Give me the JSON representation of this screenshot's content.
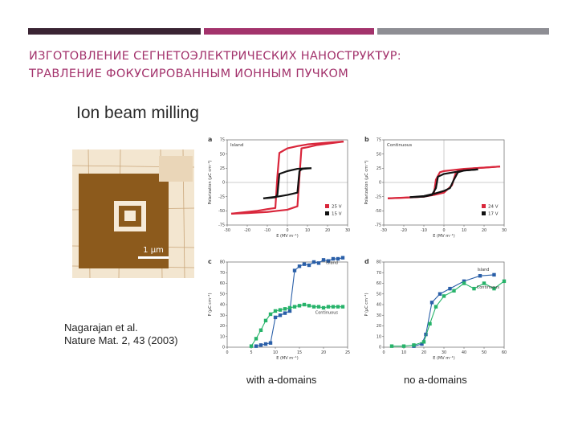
{
  "slide": {
    "title_line1": "ИЗГОТОВЛЕНИЕ СЕГНЕТОЭЛЕКТРИЧЕСКИХ НАНОСТРУКТУР:",
    "title_line2": "ТРАВЛЕНИЕ ФОКУСИРОВАННЫМ ИОННЫМ ПУЧКОМ",
    "figure_title": "Ion beam milling",
    "scale_bar_label": "1 μm",
    "reference_line1": "Nagarajan et al.",
    "reference_line2": "Nature Mat. 2, 43 (2003)",
    "caption_left": "with a-domains",
    "caption_right": "no a-domains",
    "colors": {
      "accent": "#a3336c",
      "dark_bar": "#3a2433",
      "grey_bar": "#8e8e94",
      "red": "#d9263b",
      "black": "#111111",
      "blue": "#2a5fa8",
      "green": "#27b36a",
      "afm_brown": "#8c5a1c"
    }
  },
  "chart_data": [
    {
      "panel": "a",
      "type": "line",
      "annotation": "Island",
      "xlabel": "E (MV m⁻¹)",
      "ylabel": "Polarization (μC cm⁻²)",
      "xlim": [
        -30,
        30
      ],
      "ylim": [
        -75,
        75
      ],
      "xticks": [
        -30,
        -20,
        -10,
        0,
        10,
        20,
        30
      ],
      "yticks": [
        -75,
        -50,
        -25,
        0,
        25,
        50,
        75
      ],
      "series": [
        {
          "name": "25 V",
          "color": "red",
          "upper": {
            "x": [
              -28,
              -15,
              -10,
              -6,
              -5,
              -4,
              0,
              5,
              10,
              20,
              28
            ],
            "y": [
              -55,
              -50,
              -47,
              -45,
              10,
              52,
              60,
              64,
              67,
              70,
              72
            ]
          },
          "lower": {
            "x": [
              28,
              15,
              10,
              7,
              6,
              5,
              0,
              -5,
              -10,
              -20,
              -28
            ],
            "y": [
              72,
              66,
              62,
              60,
              10,
              -42,
              -48,
              -50,
              -52,
              -54,
              -55
            ]
          }
        },
        {
          "name": "15 V",
          "color": "black",
          "upper": {
            "x": [
              -12,
              -8,
              -6,
              -5,
              -4,
              0,
              5,
              10,
              12
            ],
            "y": [
              -28,
              -27,
              -26,
              -22,
              15,
              20,
              24,
              25,
              25
            ]
          },
          "lower": {
            "x": [
              12,
              8,
              7,
              6,
              5,
              0,
              -5,
              -10,
              -12
            ],
            "y": [
              25,
              24,
              23,
              20,
              -18,
              -22,
              -25,
              -27,
              -28
            ]
          }
        }
      ]
    },
    {
      "panel": "b",
      "type": "line",
      "annotation": "Continuous",
      "xlabel": "E (MV m⁻¹)",
      "ylabel": "Polarization (μC cm⁻²)",
      "xlim": [
        -30,
        30
      ],
      "ylim": [
        -75,
        75
      ],
      "xticks": [
        -30,
        -20,
        -10,
        0,
        10,
        20,
        30
      ],
      "yticks": [
        -75,
        -50,
        -25,
        0,
        25,
        50,
        75
      ],
      "series": [
        {
          "name": "24 V",
          "color": "red",
          "upper": {
            "x": [
              -28,
              -15,
              -10,
              -5,
              -4,
              -2,
              0,
              5,
              10,
              20,
              28
            ],
            "y": [
              -28,
              -26,
              -25,
              -20,
              5,
              18,
              20,
              22,
              24,
              26,
              28
            ]
          },
          "lower": {
            "x": [
              28,
              15,
              8,
              6,
              4,
              0,
              -5,
              -10,
              -20,
              -28
            ],
            "y": [
              28,
              25,
              22,
              18,
              -5,
              -18,
              -22,
              -25,
              -27,
              -28
            ]
          }
        },
        {
          "name": "17 V",
          "color": "black",
          "upper": {
            "x": [
              -17,
              -10,
              -6,
              -4,
              -3,
              0,
              5,
              10,
              17
            ],
            "y": [
              -26,
              -25,
              -22,
              -10,
              10,
              15,
              18,
              21,
              23
            ]
          },
          "lower": {
            "x": [
              17,
              10,
              7,
              5,
              3,
              0,
              -5,
              -10,
              -17
            ],
            "y": [
              23,
              21,
              18,
              5,
              -10,
              -15,
              -20,
              -24,
              -26
            ]
          }
        }
      ]
    },
    {
      "panel": "c",
      "type": "line",
      "xlabel": "E (MV m⁻¹)",
      "ylabel": "P (μC cm⁻²)",
      "xlim": [
        0,
        25
      ],
      "ylim": [
        0,
        80
      ],
      "xticks": [
        0,
        5,
        10,
        15,
        20,
        25
      ],
      "yticks": [
        0,
        10,
        20,
        30,
        40,
        50,
        60,
        70,
        80
      ],
      "series": [
        {
          "name": "Island",
          "color": "blue",
          "x": [
            6,
            7,
            8,
            9,
            10,
            11,
            12,
            13,
            14,
            15,
            16,
            17,
            18,
            19,
            20,
            21,
            22,
            23,
            24
          ],
          "y": [
            1,
            2,
            3,
            4,
            28,
            30,
            32,
            34,
            72,
            76,
            78,
            77,
            80,
            79,
            82,
            81,
            83,
            83,
            84
          ]
        },
        {
          "name": "Continuous",
          "color": "green",
          "x": [
            5,
            6,
            7,
            8,
            9,
            10,
            11,
            12,
            13,
            14,
            15,
            16,
            17,
            18,
            19,
            20,
            21,
            22,
            23,
            24
          ],
          "y": [
            1,
            8,
            16,
            25,
            31,
            34,
            35,
            36,
            37,
            38,
            39,
            40,
            39,
            38,
            38,
            37,
            38,
            38,
            38,
            38
          ]
        }
      ]
    },
    {
      "panel": "d",
      "type": "line",
      "xlabel": "E (MV m⁻¹)",
      "ylabel": "P (μC cm⁻²)",
      "xlim": [
        0,
        60
      ],
      "ylim": [
        0,
        80
      ],
      "xticks": [
        0,
        10,
        20,
        30,
        40,
        50,
        60
      ],
      "yticks": [
        0,
        10,
        20,
        30,
        40,
        50,
        60,
        70,
        80
      ],
      "series": [
        {
          "name": "Island",
          "color": "blue",
          "x": [
            15,
            19,
            21,
            24,
            28,
            33,
            40,
            48,
            55
          ],
          "y": [
            1,
            3,
            12,
            42,
            50,
            55,
            62,
            67,
            68
          ]
        },
        {
          "name": "Continuous",
          "color": "green",
          "x": [
            4,
            10,
            15,
            20,
            23,
            26,
            30,
            35,
            40,
            45,
            50,
            55,
            60
          ],
          "y": [
            1,
            1,
            2,
            5,
            22,
            38,
            48,
            53,
            60,
            55,
            60,
            55,
            62
          ]
        }
      ]
    }
  ]
}
